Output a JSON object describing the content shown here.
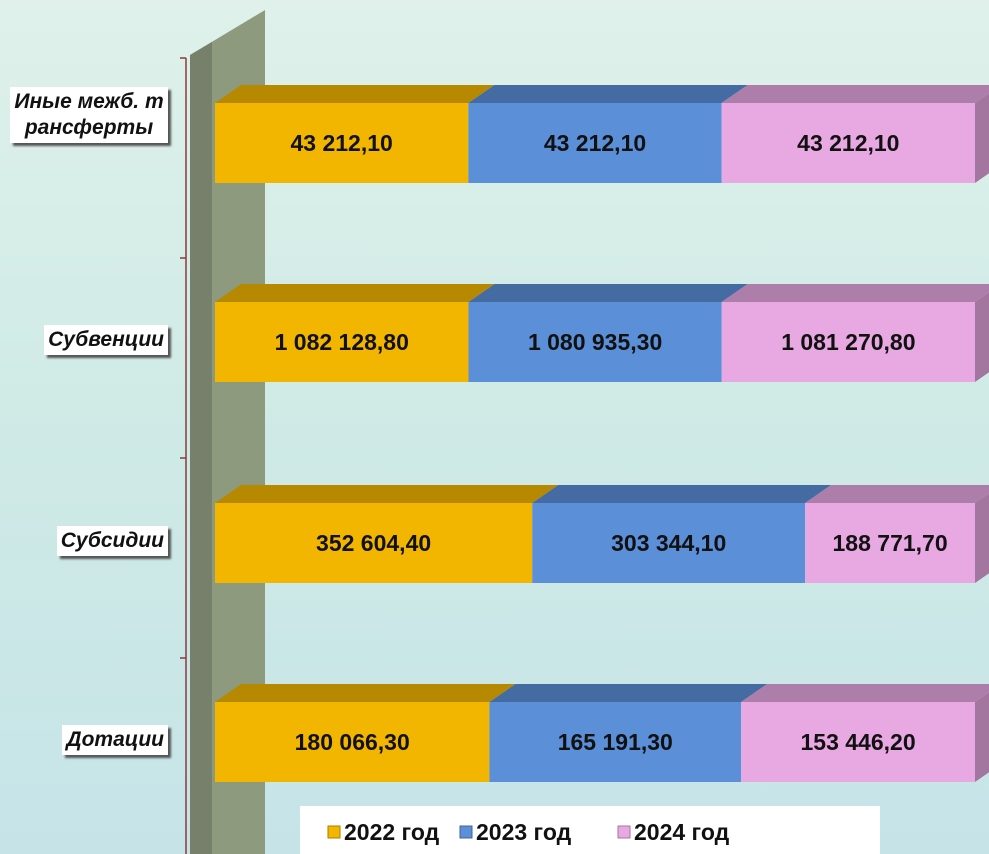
{
  "chart_data": {
    "type": "bar",
    "categories": [
      "Иные межб. трансферты",
      "Субвенции",
      "Субсидии",
      "Дотации"
    ],
    "series": [
      {
        "name": "2022 год",
        "color": "#f2b600",
        "values": [
          43212.1,
          1082128.8,
          352604.4,
          180066.3
        ],
        "value_labels": [
          "43 212,10",
          "1 082 128,80",
          "352 604,40",
          "180 066,30"
        ]
      },
      {
        "name": "2023 год",
        "color": "#5b8fd8",
        "values": [
          43212.1,
          1080935.3,
          303344.1,
          165191.3
        ],
        "value_labels": [
          "43 212,10",
          "1 080 935,30",
          "303 344,10",
          "165 191,30"
        ]
      },
      {
        "name": "2024 год",
        "color": "#e8a8e2",
        "values": [
          43212.1,
          1081270.8,
          188771.7,
          153446.2
        ],
        "value_labels": [
          "43 212,10",
          "1 081 270,80",
          "188 771,70",
          "153 446,20"
        ]
      }
    ],
    "stacking": "percent",
    "legend": "bottom"
  }
}
